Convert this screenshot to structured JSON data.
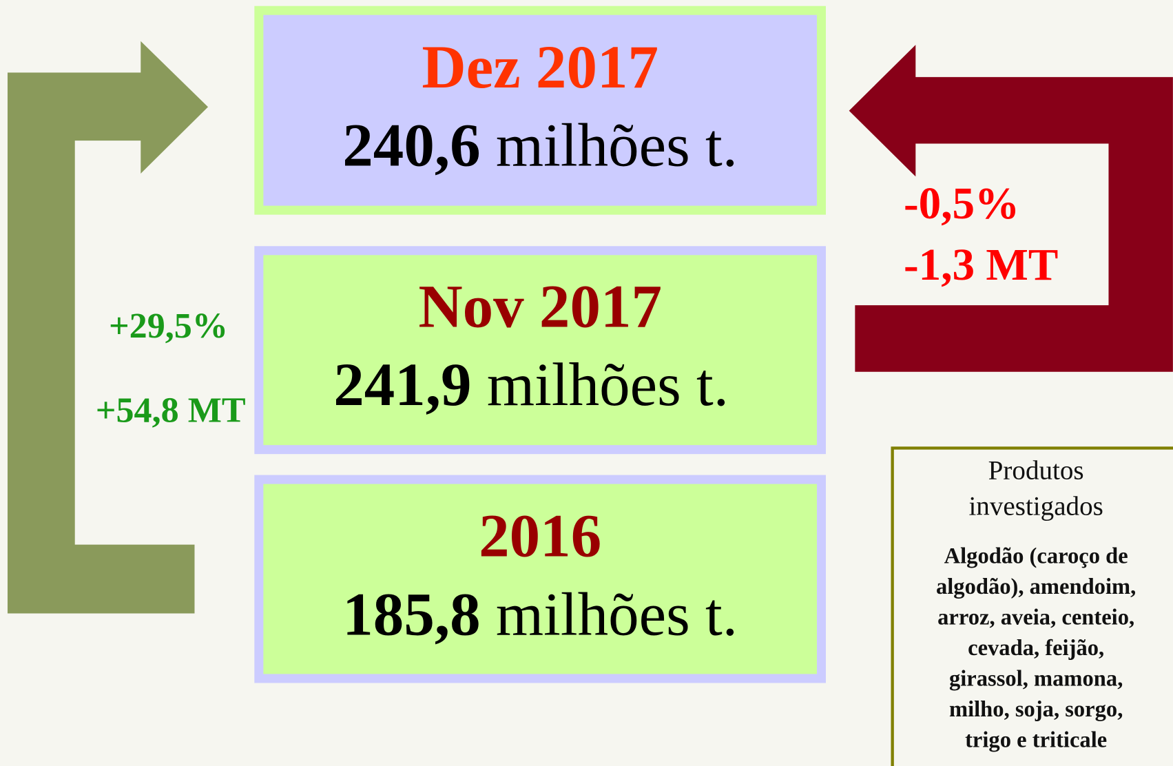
{
  "boxes": [
    {
      "title": "Dez 2017",
      "value": "240,6",
      "unit": "milhões t."
    },
    {
      "title": "Nov 2017",
      "value": "241,9",
      "unit": "milhões t."
    },
    {
      "title": "2016",
      "value": "185,8",
      "unit": "milhões t."
    }
  ],
  "left_labels": [
    "+29,5%",
    "+54,8 MT"
  ],
  "right_labels": [
    "-0,5%",
    "-1,3 MT"
  ],
  "products": {
    "heading": [
      "Produtos",
      "investigados"
    ],
    "lines": [
      "Algodão (caroço de",
      "algodão), amendoim,",
      "arroz, aveia, centeio,",
      "cevada, feijão,",
      "girassol, mamona,",
      "milho, soja, sorgo,",
      "trigo e triticale"
    ]
  }
}
